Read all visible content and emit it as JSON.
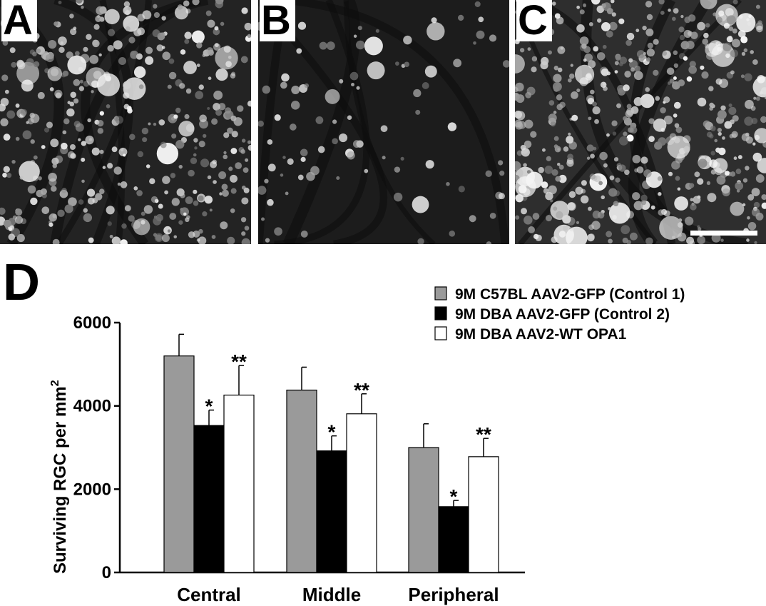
{
  "panels": [
    {
      "letter": "A"
    },
    {
      "letter": "B"
    },
    {
      "letter": "C"
    }
  ],
  "chart_label": "D",
  "chart_data": {
    "type": "bar",
    "categories": [
      "Central",
      "Middle",
      "Peripheral"
    ],
    "ylabel_main": "Surviving RGC per mm",
    "ylabel_sup": "2",
    "ylim": [
      0,
      6000
    ],
    "yticks": [
      "0",
      "2000",
      "4000",
      "6000"
    ],
    "grid": false,
    "legend_placement": "top-right",
    "series": [
      {
        "name": "9M C57BL AAV2-GFP (Control 1)",
        "color": "#9a9a9a",
        "values": [
          5200,
          4380,
          3000
        ],
        "errors": [
          520,
          550,
          570
        ],
        "marks": [
          "",
          "",
          ""
        ]
      },
      {
        "name": "9M DBA AAV2-GFP (Control 2)",
        "color": "#000000",
        "values": [
          3530,
          2920,
          1580
        ],
        "errors": [
          370,
          360,
          150
        ],
        "marks": [
          "*",
          "*",
          "*"
        ]
      },
      {
        "name": "9M DBA AAV2-WT OPA1",
        "color": "#ffffff",
        "values": [
          4260,
          3810,
          2780
        ],
        "errors": [
          710,
          480,
          440
        ],
        "marks": [
          "**",
          "**",
          "**"
        ]
      }
    ]
  }
}
